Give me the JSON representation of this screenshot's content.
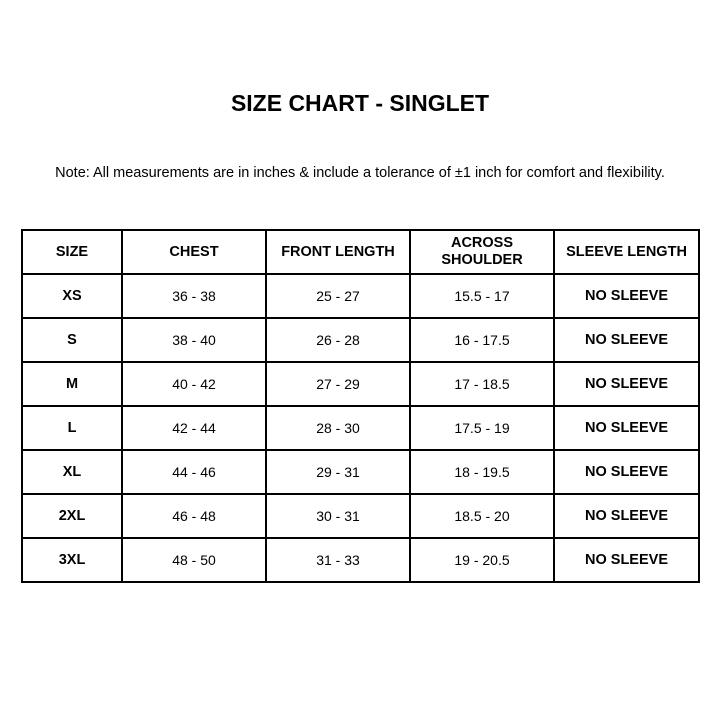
{
  "title": "SIZE CHART - SINGLET",
  "note": "Note: All measurements are in inches & include a tolerance of ±1 inch for comfort and flexibility.",
  "table": {
    "headers": [
      "SIZE",
      "CHEST",
      "FRONT LENGTH",
      "ACROSS SHOULDER",
      "SLEEVE LENGTH"
    ],
    "rows": [
      [
        "XS",
        "36 - 38",
        "25 - 27",
        "15.5 - 17",
        "NO SLEEVE"
      ],
      [
        "S",
        "38 - 40",
        "26 - 28",
        "16 - 17.5",
        "NO SLEEVE"
      ],
      [
        "M",
        "40 - 42",
        "27 - 29",
        "17 - 18.5",
        "NO SLEEVE"
      ],
      [
        "L",
        "42 - 44",
        "28 - 30",
        "17.5 - 19",
        "NO SLEEVE"
      ],
      [
        "XL",
        "44 - 46",
        "29 - 31",
        "18 - 19.5",
        "NO SLEEVE"
      ],
      [
        "2XL",
        "46 - 48",
        "30 - 31",
        "18.5 - 20",
        "NO SLEEVE"
      ],
      [
        "3XL",
        "48 - 50",
        "31 - 33",
        "19 - 20.5",
        "NO SLEEVE"
      ]
    ]
  }
}
